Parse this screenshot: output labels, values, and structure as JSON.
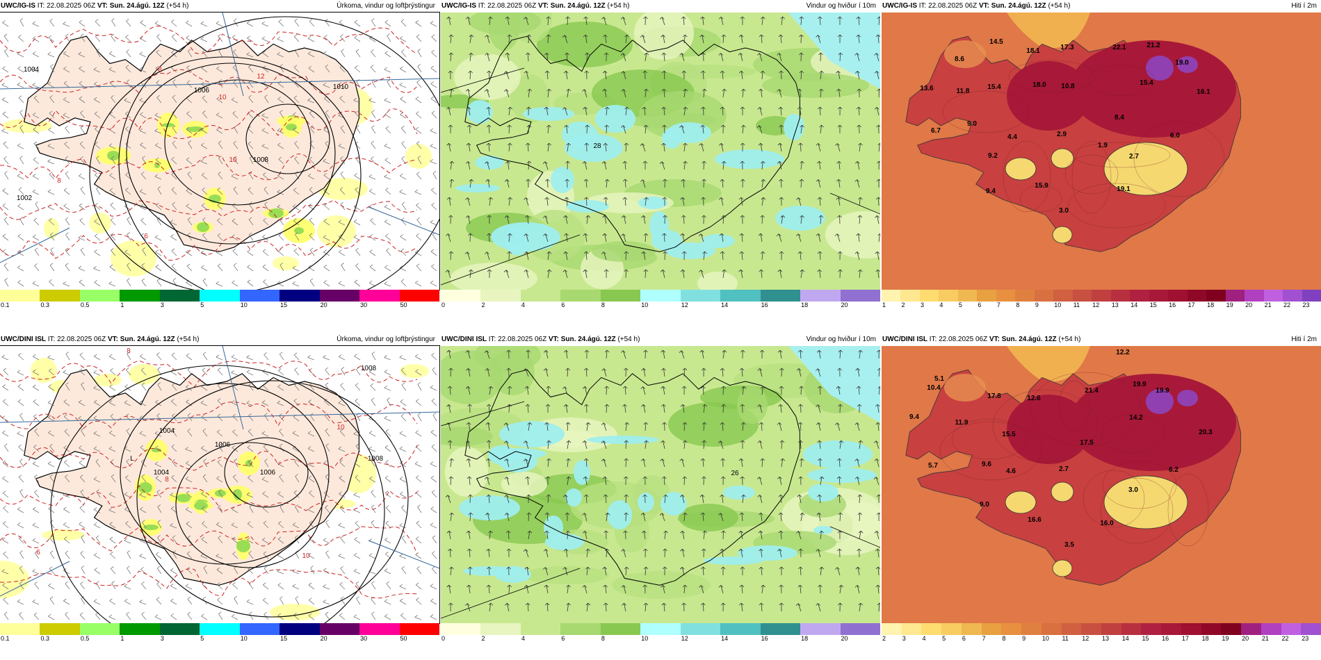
{
  "panels": [
    {
      "id": "p1",
      "kind": "precip",
      "model": "UWC/IG-IS",
      "it_label": "IT:",
      "it_value": "22.08.2025 06Z",
      "vt_label": "VT:",
      "vt_value": "Sun. 24.ágú. 12Z",
      "lead": "(+54 h)",
      "title": "Úrkoma, vindur og loftþrýstingur",
      "ticks": [
        "0.1",
        "0.3",
        "0.5",
        "1",
        "3",
        "5",
        "10",
        "15",
        "20",
        "30",
        "50"
      ],
      "colors": [
        "#ffff99",
        "#cccc00",
        "#99ff66",
        "#009900",
        "#006633",
        "#00ffff",
        "#3366ff",
        "#000080",
        "#660066",
        "#ff0099",
        "#ff0000"
      ],
      "labels": [
        {
          "t": "1004",
          "c": "#000"
        },
        {
          "t": "1006",
          "c": "#000"
        },
        {
          "t": "1002",
          "c": "#000"
        },
        {
          "t": "1010",
          "c": "#000"
        },
        {
          "t": "1008",
          "c": "#000"
        },
        {
          "t": "8",
          "c": "#cc2222"
        },
        {
          "t": "10",
          "c": "#cc2222"
        },
        {
          "t": "12",
          "c": "#cc2222"
        },
        {
          "t": "8",
          "c": "#cc2222"
        },
        {
          "t": "10",
          "c": "#cc2222"
        },
        {
          "t": "6",
          "c": "#cc2222"
        }
      ]
    },
    {
      "id": "p2",
      "kind": "wind",
      "model": "UWC/IG-IS",
      "it_label": "IT:",
      "it_value": "22.08.2025 06Z",
      "vt_label": "VT:",
      "vt_value": "Sun. 24.ágú. 12Z",
      "lead": "(+54 h)",
      "title": "Vindur og hviður í 10m",
      "ticks": [
        "0",
        "2",
        "4",
        "6",
        "8",
        "10",
        "12",
        "14",
        "16",
        "18",
        "20"
      ],
      "colors": [
        "#ffffe0",
        "#e8f5c0",
        "#c8e890",
        "#a8d870",
        "#88c850",
        "#b0ffff",
        "#80e0e0",
        "#50c0c0",
        "#309090",
        "#c0a8f0",
        "#9070d0"
      ],
      "labels": [
        {
          "t": "28",
          "c": "#000"
        }
      ]
    },
    {
      "id": "p3",
      "kind": "temp",
      "model": "UWC/IG-IS",
      "it_label": "IT:",
      "it_value": "22.08.2025 06Z",
      "vt_label": "VT:",
      "vt_value": "Sun. 24.ágú. 12Z",
      "lead": "(+54 h)",
      "title": "Hiti í 2m",
      "ticks": [
        "1",
        "2",
        "3",
        "4",
        "5",
        "6",
        "7",
        "8",
        "9",
        "10",
        "11",
        "12",
        "13",
        "14",
        "15",
        "16",
        "17",
        "18",
        "19",
        "20",
        "21",
        "22",
        "23"
      ],
      "colors": [
        "#fff3b0",
        "#ffe890",
        "#ffdc70",
        "#f8cc60",
        "#f0b850",
        "#e8a040",
        "#e89040",
        "#e08040",
        "#d87040",
        "#d06040",
        "#c85040",
        "#c04040",
        "#b83040",
        "#b02040",
        "#a81838",
        "#a01030",
        "#900828",
        "#800020",
        "#a02080",
        "#b040c0",
        "#c060e0",
        "#a050d0",
        "#8040c0"
      ],
      "labels": [
        {
          "t": "14.5"
        },
        {
          "t": "8.6"
        },
        {
          "t": "13.6"
        },
        {
          "t": "15.4"
        },
        {
          "t": "11.8"
        },
        {
          "t": "18.1"
        },
        {
          "t": "18.0"
        },
        {
          "t": "17.3"
        },
        {
          "t": "10.8"
        },
        {
          "t": "22.1"
        },
        {
          "t": "21.2"
        },
        {
          "t": "19.0"
        },
        {
          "t": "15.4"
        },
        {
          "t": "16.1"
        },
        {
          "t": "9.0"
        },
        {
          "t": "6.7"
        },
        {
          "t": "8.4"
        },
        {
          "t": "4.4"
        },
        {
          "t": "2.9"
        },
        {
          "t": "6.0"
        },
        {
          "t": "1.9"
        },
        {
          "t": "9.2"
        },
        {
          "t": "2.7"
        },
        {
          "t": "9.4"
        },
        {
          "t": "15.9"
        },
        {
          "t": "19.1"
        },
        {
          "t": "3.0"
        }
      ]
    },
    {
      "id": "p4",
      "kind": "precip",
      "model": "UWC/DINI ISL",
      "it_label": "IT:",
      "it_value": "22.08.2025 06Z",
      "vt_label": "VT:",
      "vt_value": "Sun. 24.ágú. 12Z",
      "lead": "(+54 h)",
      "title": "Úrkoma, vindur og loftþrýstingur",
      "ticks": [
        "0.1",
        "0.3",
        "0.5",
        "1",
        "3",
        "5",
        "10",
        "15",
        "20",
        "30",
        "50"
      ],
      "colors": [
        "#ffff99",
        "#cccc00",
        "#99ff66",
        "#009900",
        "#006633",
        "#00ffff",
        "#3366ff",
        "#000080",
        "#660066",
        "#ff0099",
        "#ff0000"
      ],
      "labels": [
        {
          "t": "1008",
          "c": "#000"
        },
        {
          "t": "1004",
          "c": "#000"
        },
        {
          "t": "1006",
          "c": "#000"
        },
        {
          "t": "1004",
          "c": "#000"
        },
        {
          "t": "1006",
          "c": "#000"
        },
        {
          "t": "L",
          "c": "#000"
        },
        {
          "t": "1008",
          "c": "#000"
        },
        {
          "t": "8",
          "c": "#cc2222"
        },
        {
          "t": "10",
          "c": "#cc2222"
        },
        {
          "t": "8",
          "c": "#cc2222"
        },
        {
          "t": "6",
          "c": "#cc2222"
        },
        {
          "t": "10",
          "c": "#cc2222"
        }
      ]
    },
    {
      "id": "p5",
      "kind": "wind",
      "model": "UWC/DINI ISL",
      "it_label": "IT:",
      "it_value": "22.08.2025 06Z",
      "vt_label": "VT:",
      "vt_value": "Sun. 24.ágú. 12Z",
      "lead": "(+54 h)",
      "title": "Vindur og hviður í 10m",
      "ticks": [
        "0",
        "2",
        "4",
        "6",
        "8",
        "10",
        "12",
        "14",
        "16",
        "18",
        "20"
      ],
      "colors": [
        "#ffffe0",
        "#e8f5c0",
        "#c8e890",
        "#a8d870",
        "#88c850",
        "#b0ffff",
        "#80e0e0",
        "#50c0c0",
        "#309090",
        "#c0a8f0",
        "#9070d0"
      ],
      "labels": [
        {
          "t": "26",
          "c": "#000"
        }
      ]
    },
    {
      "id": "p6",
      "kind": "temp",
      "model": "UWC/DINI ISL",
      "it_label": "IT:",
      "it_value": "22.08.2025 06Z",
      "vt_label": "VT:",
      "vt_value": "Sun. 24.ágú. 12Z",
      "lead": "(+54 h)",
      "title": "Hiti í 2m",
      "ticks": [
        "2",
        "3",
        "4",
        "5",
        "6",
        "7",
        "8",
        "9",
        "10",
        "11",
        "12",
        "13",
        "14",
        "15",
        "16",
        "17",
        "18",
        "19",
        "20",
        "21",
        "22",
        "23"
      ],
      "colors": [
        "#fff3b0",
        "#ffe890",
        "#ffdc70",
        "#f8cc60",
        "#f0b850",
        "#e8a040",
        "#e89040",
        "#e08040",
        "#d87040",
        "#d06040",
        "#c85040",
        "#c04040",
        "#b83040",
        "#b02040",
        "#a81838",
        "#a01030",
        "#900828",
        "#800020",
        "#a02080",
        "#b040c0",
        "#c060e0",
        "#a050d0"
      ],
      "labels": [
        {
          "t": "12.2"
        },
        {
          "t": "5.1"
        },
        {
          "t": "10.4"
        },
        {
          "t": "9.4"
        },
        {
          "t": "11.9"
        },
        {
          "t": "17.8"
        },
        {
          "t": "12.6"
        },
        {
          "t": "21.4"
        },
        {
          "t": "19.9"
        },
        {
          "t": "19.9"
        },
        {
          "t": "14.2"
        },
        {
          "t": "20.3"
        },
        {
          "t": "15.5"
        },
        {
          "t": "17.5"
        },
        {
          "t": "5.7"
        },
        {
          "t": "9.6"
        },
        {
          "t": "4.6"
        },
        {
          "t": "2.7"
        },
        {
          "t": "6.2"
        },
        {
          "t": "3.0"
        },
        {
          "t": "9.0"
        },
        {
          "t": "16.6"
        },
        {
          "t": "16.0"
        },
        {
          "t": "3.5"
        }
      ]
    }
  ]
}
